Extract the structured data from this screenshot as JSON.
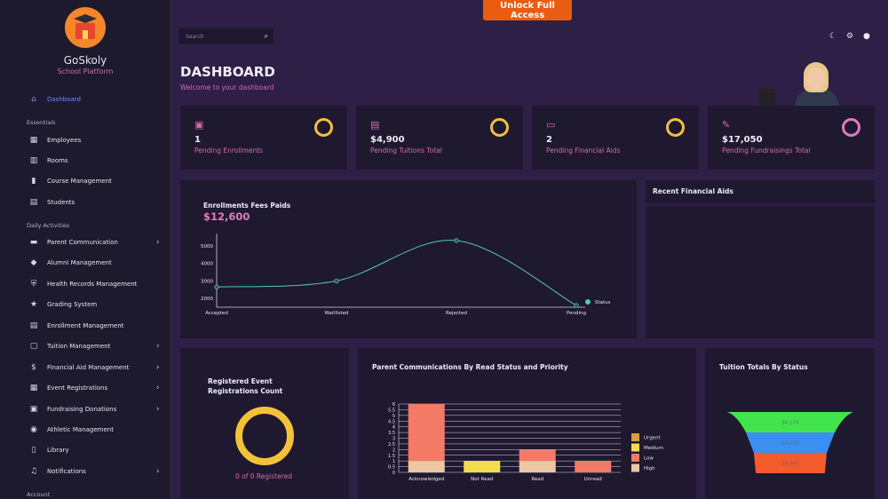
{
  "app": {
    "name": "GoSkoly",
    "subtitle": "School Platform"
  },
  "topbar": {
    "unlock_label": "Unlock Full Access",
    "search_placeholder": "Search"
  },
  "sidebar": {
    "dashboard": "Dashboard",
    "sections": {
      "essentials": "Essentials",
      "daily": "Daily Activities",
      "account": "Account"
    },
    "items": [
      {
        "label": "Employees",
        "icon": "employees-icon"
      },
      {
        "label": "Rooms",
        "icon": "rooms-icon"
      },
      {
        "label": "Course Management",
        "icon": "course-icon"
      },
      {
        "label": "Students",
        "icon": "students-icon"
      },
      {
        "label": "Parent Communication",
        "icon": "chat-icon",
        "chevron": true
      },
      {
        "label": "Alumni Management",
        "icon": "alumni-icon"
      },
      {
        "label": "Health Records Management",
        "icon": "shield-icon"
      },
      {
        "label": "Grading System",
        "icon": "star-icon"
      },
      {
        "label": "Enrollment Management",
        "icon": "enrollment-icon"
      },
      {
        "label": "Tuition Management",
        "icon": "tuition-icon",
        "chevron": true
      },
      {
        "label": "Financial Aid Management",
        "icon": "dollar-icon",
        "chevron": true
      },
      {
        "label": "Event Registrations",
        "icon": "calendar-icon",
        "chevron": true
      },
      {
        "label": "Fundraising Donations",
        "icon": "donation-icon",
        "chevron": true
      },
      {
        "label": "Athletic Management",
        "icon": "athletic-icon"
      },
      {
        "label": "Library",
        "icon": "library-icon"
      },
      {
        "label": "Notifications",
        "icon": "bell-icon",
        "chevron": true
      }
    ]
  },
  "header": {
    "title": "DASHBOARD",
    "subtitle": "Welcome to your dashboard"
  },
  "stats": [
    {
      "value": "1",
      "label": "Pending Enrollments",
      "ring_color": "#f4c238"
    },
    {
      "value": "$4,900",
      "label": "Pending Tuitions Total",
      "ring_color": "#f4c238"
    },
    {
      "value": "2",
      "label": "Pending Financial Aids",
      "ring_color": "#f4c238"
    },
    {
      "value": "$17,050",
      "label": "Pending Fundraisings Total",
      "ring_color": "#e27ac1"
    }
  ],
  "enroll_chart": {
    "title": "Enrollments Fees Paids",
    "total": "$12,600"
  },
  "recent_aids": {
    "title": "Recent Financial Aids"
  },
  "registrations": {
    "title": "Registered Event Registrations Count",
    "summary": "0 of 0 Registered"
  },
  "parent_comm": {
    "title": "Parent Communications By Read Status and Priority"
  },
  "tuition": {
    "title": "Tuition Totals By Status"
  },
  "chart_data": [
    {
      "type": "line",
      "categories": [
        "Accepted",
        "Waitlisted",
        "Rejected",
        "Pending"
      ],
      "y_ticks": [
        2000,
        3000,
        4000,
        5000
      ],
      "ylim": [
        1500,
        5700
      ],
      "series": [
        {
          "name": "Status",
          "values": [
            2650,
            3000,
            5300,
            1600
          ],
          "color": "#4fc9b0"
        }
      ],
      "legend": "right"
    },
    {
      "type": "bar",
      "stacked": true,
      "categories": [
        "Acknowledged",
        "Not Read",
        "Read",
        "Unread"
      ],
      "y_ticks": [
        0,
        0.5,
        1,
        1.5,
        2,
        2.5,
        3,
        3.5,
        4,
        4.5,
        5,
        5.5,
        6
      ],
      "ylim": [
        0,
        6
      ],
      "series": [
        {
          "name": "Urgent",
          "values": [
            0,
            0,
            0,
            0
          ],
          "color": "#d9a13a"
        },
        {
          "name": "Medium",
          "values": [
            0,
            1,
            0,
            0
          ],
          "color": "#f2dd50"
        },
        {
          "name": "Low",
          "values": [
            5,
            0,
            1,
            1
          ],
          "color": "#f27a66"
        },
        {
          "name": "High",
          "values": [
            1,
            0,
            1,
            0
          ],
          "color": "#ecc7a3"
        }
      ],
      "legend": "right"
    },
    {
      "type": "funnel",
      "labels": [
        "$6,175",
        "$5,150",
        "$4,900"
      ],
      "values": [
        6175,
        5150,
        4900
      ],
      "colors": [
        "#42e44d",
        "#3a8ff0",
        "#f55a2c"
      ]
    }
  ]
}
